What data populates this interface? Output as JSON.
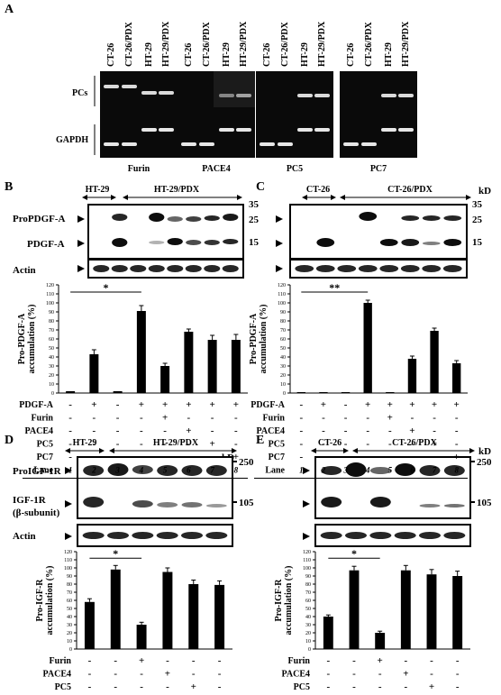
{
  "panelA": {
    "letter": "A",
    "row_labels": {
      "pcs": "PCs",
      "gapdh": "GAPDH"
    },
    "lane_labels": [
      "CT-26",
      "CT-26/PDX",
      "HT-29",
      "HT-29/PDX"
    ],
    "gels": [
      {
        "name": "Furin"
      },
      {
        "name": "PACE4"
      },
      {
        "name": "PC5"
      },
      {
        "name": "PC7"
      }
    ]
  },
  "panelB": {
    "letter": "B",
    "group1": "HT-29",
    "group2": "HT-29/PDX",
    "band_labels": [
      "ProPDGF-A",
      "PDGF-A"
    ],
    "actin": "Actin",
    "markers": [
      "35",
      "25",
      "15"
    ],
    "ylabel": [
      "Pro-PDGF-A",
      "accumulation (%)"
    ],
    "yticks": [
      "0",
      "10",
      "20",
      "30",
      "40",
      "50",
      "60",
      "70",
      "80",
      "90",
      "100",
      "110",
      "120"
    ],
    "star": "*",
    "table": [
      {
        "label": "PDGF-A",
        "vals": [
          "-",
          "+",
          "-",
          "+",
          "+",
          "+",
          "+",
          "+"
        ]
      },
      {
        "label": "Furin",
        "vals": [
          "-",
          "-",
          "-",
          "-",
          "+",
          "-",
          "-",
          "-"
        ]
      },
      {
        "label": "PACE4",
        "vals": [
          "-",
          "-",
          "-",
          "-",
          "-",
          "+",
          "-",
          "-"
        ]
      },
      {
        "label": "PC5",
        "vals": [
          "-",
          "-",
          "-",
          "-",
          "-",
          "-",
          "+",
          "-"
        ]
      },
      {
        "label": "PC7",
        "vals": [
          "-",
          "-",
          "-",
          "-",
          "-",
          "-",
          "-",
          "+"
        ]
      },
      {
        "label": "Lane",
        "vals": [
          "1",
          "2",
          "3",
          "4",
          "5",
          "6",
          "7",
          "8"
        ]
      }
    ]
  },
  "panelC": {
    "letter": "C",
    "group1": "CT-26",
    "group2": "CT-26/PDX",
    "kd": "kD",
    "markers": [
      "35",
      "25",
      "15"
    ],
    "ylabel": [
      "Pro-PDGF-A",
      "accumulation (%)"
    ],
    "yticks": [
      "0",
      "10",
      "20",
      "30",
      "40",
      "50",
      "60",
      "70",
      "80",
      "90",
      "100",
      "110",
      "120"
    ],
    "star": "**",
    "table": [
      {
        "label": "PDGF-A",
        "vals": [
          "-",
          "+",
          "-",
          "+",
          "+",
          "+",
          "+",
          "+"
        ]
      },
      {
        "label": "Furin",
        "vals": [
          "-",
          "-",
          "-",
          "-",
          "+",
          "-",
          "-",
          "-"
        ]
      },
      {
        "label": "PACE4",
        "vals": [
          "-",
          "-",
          "-",
          "-",
          "-",
          "+",
          "-",
          "-"
        ]
      },
      {
        "label": "PC5",
        "vals": [
          "-",
          "-",
          "-",
          "-",
          "-",
          "-",
          "+",
          "-"
        ]
      },
      {
        "label": "PC7",
        "vals": [
          "-",
          "-",
          "-",
          "-",
          "-",
          "-",
          "-",
          "+"
        ]
      },
      {
        "label": "Lane",
        "vals": [
          "1",
          "2",
          "3",
          "4",
          "5",
          "6",
          "7",
          "8"
        ]
      }
    ]
  },
  "panelD": {
    "letter": "D",
    "group1": "HT-29",
    "group2": "HT-29/PDX",
    "kd": "kD",
    "band_labels": [
      "ProIGF-1R",
      "IGF-1R",
      "(β-subunit)"
    ],
    "actin": "Actin",
    "markers": [
      "250",
      "105"
    ],
    "ylabel": [
      "Pro-IGF-R",
      "accumulation (%)"
    ],
    "yticks": [
      "0",
      "10",
      "20",
      "30",
      "40",
      "50",
      "60",
      "70",
      "80",
      "90",
      "100",
      "110",
      "120"
    ],
    "star": "*",
    "table": [
      {
        "label": "Furin",
        "vals": [
          "-",
          "-",
          "+",
          "-",
          "-",
          "-"
        ]
      },
      {
        "label": "PACE4",
        "vals": [
          "-",
          "-",
          "-",
          "+",
          "-",
          "-"
        ]
      },
      {
        "label": "PC5",
        "vals": [
          "-",
          "-",
          "-",
          "-",
          "+",
          "-"
        ]
      },
      {
        "label": "PC7",
        "vals": [
          "-",
          "-",
          "-",
          "-",
          "-",
          "+"
        ]
      },
      {
        "label": "Lane",
        "vals": [
          "1",
          "2",
          "3",
          "4",
          "5",
          "6"
        ]
      }
    ]
  },
  "panelE": {
    "letter": "E",
    "group1": "CT-26",
    "group2": "CT-26/PDX",
    "kd": "kD",
    "markers": [
      "250",
      "105"
    ],
    "ylabel": [
      "Pro-IGF-R",
      "accumulation (%)"
    ],
    "yticks": [
      "0",
      "10",
      "20",
      "30",
      "40",
      "50",
      "60",
      "70",
      "80",
      "90",
      "100",
      "110",
      "120"
    ],
    "star": "*",
    "table": [
      {
        "label": "Furin",
        "vals": [
          "-",
          "-",
          "+",
          "-",
          "-",
          "-"
        ]
      },
      {
        "label": "PACE4",
        "vals": [
          "-",
          "-",
          "-",
          "+",
          "-",
          "-"
        ]
      },
      {
        "label": "PC5",
        "vals": [
          "-",
          "-",
          "-",
          "-",
          "+",
          "-"
        ]
      },
      {
        "label": "PC7",
        "vals": [
          "-",
          "-",
          "-",
          "-",
          "-",
          "+"
        ]
      },
      {
        "label": "Lane",
        "vals": [
          "1",
          "2",
          "3",
          "4",
          "5",
          "6"
        ]
      }
    ]
  },
  "chart_data": [
    {
      "panel": "B",
      "type": "bar",
      "categories": [
        "1",
        "2",
        "3",
        "4",
        "5",
        "6",
        "7",
        "8"
      ],
      "values": [
        2,
        43,
        2,
        91,
        30,
        68,
        59,
        59
      ],
      "errors": [
        0,
        5,
        0,
        6,
        3,
        3,
        5,
        6
      ],
      "ylabel": "Pro-PDGF-A accumulation (%)",
      "ylim": [
        0,
        120
      ]
    },
    {
      "panel": "C",
      "type": "bar",
      "categories": [
        "1",
        "2",
        "3",
        "4",
        "5",
        "6",
        "7",
        "8"
      ],
      "values": [
        1,
        1,
        1,
        100,
        1,
        38,
        69,
        33
      ],
      "errors": [
        0,
        0,
        0,
        3,
        0,
        3,
        3,
        3
      ],
      "ylabel": "Pro-PDGF-A accumulation (%)",
      "ylim": [
        0,
        120
      ]
    },
    {
      "panel": "D",
      "type": "bar",
      "categories": [
        "1",
        "2",
        "3",
        "4",
        "5",
        "6"
      ],
      "values": [
        58,
        98,
        30,
        95,
        80,
        79
      ],
      "errors": [
        4,
        5,
        3,
        5,
        5,
        5
      ],
      "ylabel": "Pro-IGF-R accumulation (%)",
      "ylim": [
        0,
        120
      ]
    },
    {
      "panel": "E",
      "type": "bar",
      "categories": [
        "1",
        "2",
        "3",
        "4",
        "5",
        "6"
      ],
      "values": [
        40,
        97,
        20,
        97,
        92,
        90
      ],
      "errors": [
        2,
        5,
        2,
        6,
        6,
        6
      ],
      "ylabel": "Pro-IGF-R accumulation (%)",
      "ylim": [
        0,
        120
      ]
    }
  ]
}
